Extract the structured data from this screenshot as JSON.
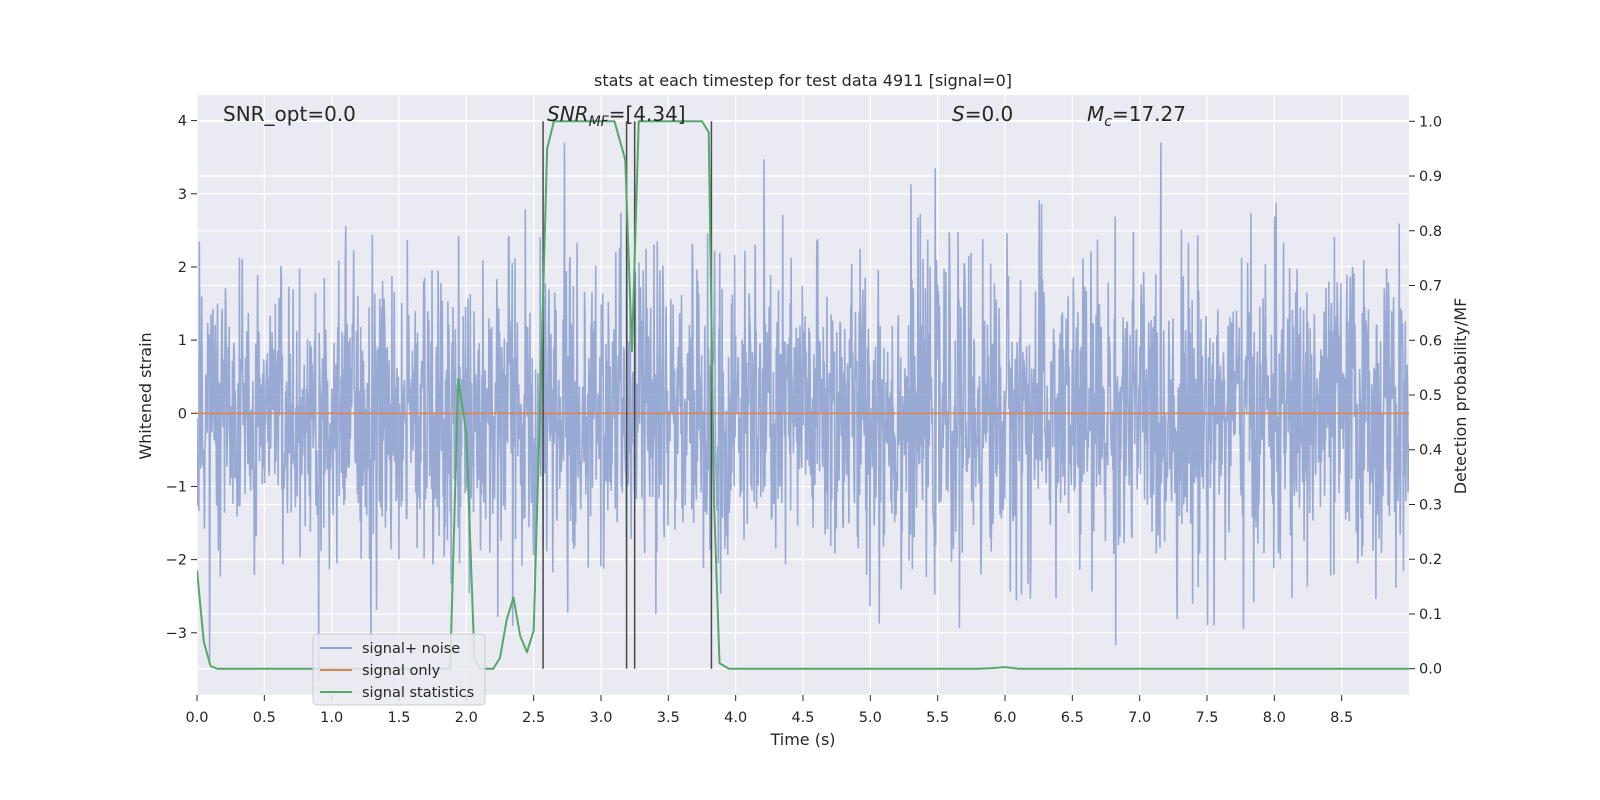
{
  "chart_data": {
    "type": "line",
    "title": "stats at each timestep for test data 4911 [signal=0]",
    "xlabel": "Time (s)",
    "ylabel": "Whitened strain",
    "ylabel_right": "Detection probability/MF",
    "xlim": [
      0.0,
      9.0
    ],
    "ylim": [
      -3.85,
      4.35
    ],
    "ylim_right": [
      -0.048,
      1.048
    ],
    "x_ticks": [
      "0.0",
      "0.5",
      "1.0",
      "1.5",
      "2.0",
      "2.5",
      "3.0",
      "3.5",
      "4.0",
      "4.5",
      "5.0",
      "5.5",
      "6.0",
      "6.5",
      "7.0",
      "7.5",
      "8.0",
      "8.5"
    ],
    "y_ticks_left": [
      "−3",
      "−2",
      "−1",
      "0",
      "1",
      "2",
      "3",
      "4"
    ],
    "y_ticks_right": [
      "0.0",
      "0.1",
      "0.2",
      "0.3",
      "0.4",
      "0.5",
      "0.6",
      "0.7",
      "0.8",
      "0.9",
      "1.0"
    ],
    "annotations": {
      "snr_opt": "SNR_opt=0.0",
      "snr_mf_main": "SNR",
      "snr_mf_sub": "MF",
      "snr_mf_value": "=[4.34]",
      "s_main": "S",
      "s_value": "=0.0",
      "mc_main": "M",
      "mc_sub": "c",
      "mc_value": "=17.27"
    },
    "series": [
      {
        "name": "signal+ noise",
        "color": "#8fa3cf",
        "description": "whitened strain noise, amplitude roughly within ±3.5"
      },
      {
        "name": "signal only",
        "color": "#dd8452",
        "value": 0.0
      },
      {
        "name": "signal statistics",
        "color": "#55a868",
        "x": [
          0.0,
          0.05,
          0.1,
          0.15,
          0.5,
          1.0,
          1.5,
          1.8,
          1.88,
          1.94,
          2.0,
          2.06,
          2.1,
          2.15,
          2.2,
          2.25,
          2.3,
          2.35,
          2.4,
          2.45,
          2.5,
          2.55,
          2.6,
          2.65,
          2.7,
          2.75,
          3.1,
          3.18,
          3.23,
          3.28,
          3.33,
          3.38,
          3.75,
          3.8,
          3.84,
          3.88,
          3.95,
          4.2,
          5.0,
          5.8,
          5.9,
          6.0,
          6.1,
          7.0,
          8.0,
          9.0
        ],
        "y": [
          0.18,
          0.05,
          0.005,
          0.0,
          0.0,
          0.0,
          0.0,
          0.0,
          0.0,
          0.53,
          0.43,
          0.02,
          0.0,
          0.0,
          0.0,
          0.02,
          0.09,
          0.13,
          0.06,
          0.03,
          0.07,
          0.5,
          0.95,
          1.0,
          1.0,
          1.0,
          1.0,
          0.93,
          0.58,
          1.0,
          1.0,
          1.0,
          1.0,
          0.98,
          0.3,
          0.01,
          0.0,
          0.0,
          0.0,
          0.0,
          0.001,
          0.003,
          0.0,
          0.0,
          0.0,
          0.0
        ]
      }
    ],
    "vertical_lines_s": [
      2.57,
      3.19,
      3.25,
      3.82
    ],
    "vertical_lines_range_right": [
      0.0,
      1.0
    ],
    "grid": true,
    "legend_position": "lower-left"
  }
}
